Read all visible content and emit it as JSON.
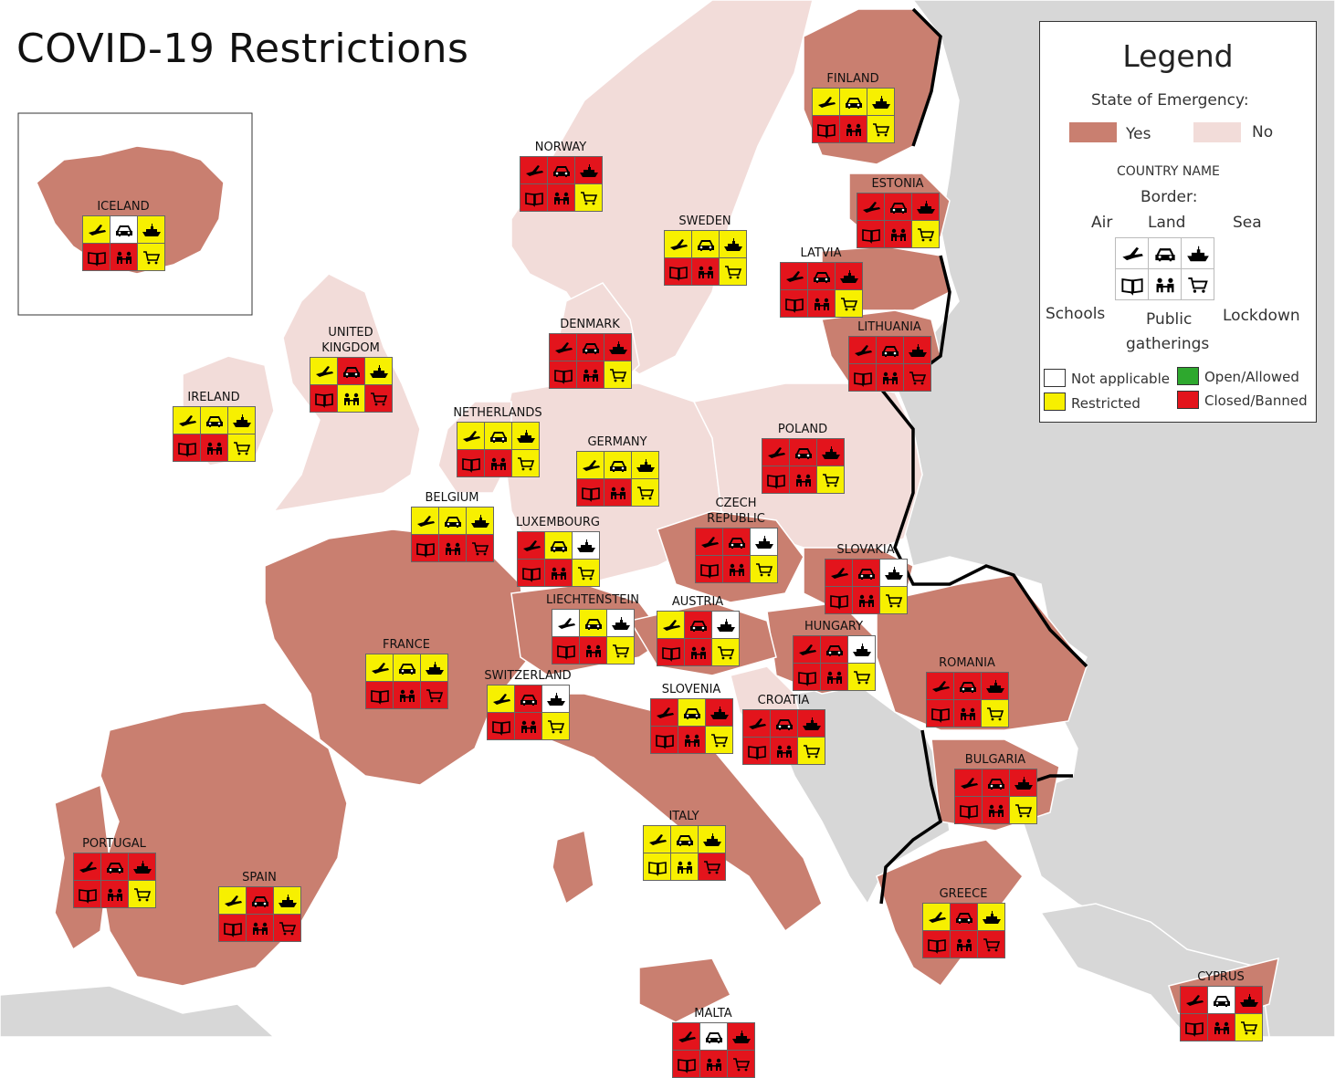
{
  "title": "COVID-19 Restrictions",
  "colors": {
    "sea": "#ffffff",
    "emergency_yes": "#c97f70",
    "emergency_no": "#f2dcd9",
    "other_land": "#d7d7d7",
    "restricted": "#f7f000",
    "closed": "#e3141c",
    "open": "#2ea82e",
    "na": "#ffffff"
  },
  "icons": [
    "plane-icon",
    "car-icon",
    "ship-icon",
    "book-icon",
    "people-icon",
    "cart-icon"
  ],
  "legend": {
    "title": "Legend",
    "state_label": "State of Emergency:",
    "yes": "Yes",
    "no": "No",
    "country_name": "COUNTRY NAME",
    "border": "Border:",
    "air": "Air",
    "land": "Land",
    "sea": "Sea",
    "schools": "Schools",
    "public": "Public",
    "gatherings": "gatherings",
    "lockdown": "Lockdown",
    "na": "Not applicable",
    "restricted": "Restricted",
    "open": "Open/Allowed",
    "closed": "Closed/Banned"
  },
  "countries": [
    {
      "name": "ICELAND",
      "s": [
        "y",
        "w",
        "y",
        "r",
        "r",
        "y"
      ]
    },
    {
      "name": "FINLAND",
      "s": [
        "y",
        "y",
        "y",
        "r",
        "r",
        "y"
      ]
    },
    {
      "name": "NORWAY",
      "s": [
        "r",
        "r",
        "r",
        "r",
        "r",
        "y"
      ]
    },
    {
      "name": "ESTONIA",
      "s": [
        "r",
        "r",
        "r",
        "r",
        "r",
        "y"
      ]
    },
    {
      "name": "SWEDEN",
      "s": [
        "y",
        "y",
        "y",
        "r",
        "r",
        "y"
      ]
    },
    {
      "name": "LATVIA",
      "s": [
        "r",
        "r",
        "r",
        "r",
        "r",
        "y"
      ]
    },
    {
      "name": "LITHUANIA",
      "s": [
        "r",
        "r",
        "r",
        "r",
        "r",
        "r"
      ]
    },
    {
      "name": "DENMARK",
      "s": [
        "r",
        "r",
        "r",
        "r",
        "r",
        "y"
      ]
    },
    {
      "name": "UNITED\nKINGDOM",
      "s": [
        "y",
        "r",
        "y",
        "r",
        "y",
        "r"
      ]
    },
    {
      "name": "IRELAND",
      "s": [
        "y",
        "y",
        "y",
        "r",
        "r",
        "y"
      ]
    },
    {
      "name": "NETHERLANDS",
      "s": [
        "y",
        "y",
        "y",
        "r",
        "r",
        "y"
      ]
    },
    {
      "name": "GERMANY",
      "s": [
        "y",
        "y",
        "y",
        "r",
        "r",
        "y"
      ]
    },
    {
      "name": "POLAND",
      "s": [
        "r",
        "r",
        "r",
        "r",
        "r",
        "y"
      ]
    },
    {
      "name": "BELGIUM",
      "s": [
        "y",
        "y",
        "y",
        "r",
        "r",
        "r"
      ]
    },
    {
      "name": "LUXEMBOURG",
      "s": [
        "r",
        "y",
        "w",
        "r",
        "r",
        "y"
      ]
    },
    {
      "name": "CZECH\nREPUBLIC",
      "s": [
        "r",
        "r",
        "w",
        "r",
        "r",
        "y"
      ]
    },
    {
      "name": "SLOVAKIA",
      "s": [
        "r",
        "r",
        "w",
        "r",
        "r",
        "y"
      ]
    },
    {
      "name": "LIECHTENSTEIN",
      "s": [
        "w",
        "y",
        "w",
        "r",
        "r",
        "y"
      ]
    },
    {
      "name": "AUSTRIA",
      "s": [
        "y",
        "r",
        "w",
        "r",
        "r",
        "y"
      ]
    },
    {
      "name": "HUNGARY",
      "s": [
        "r",
        "r",
        "w",
        "r",
        "r",
        "y"
      ]
    },
    {
      "name": "FRANCE",
      "s": [
        "y",
        "y",
        "y",
        "r",
        "r",
        "r"
      ]
    },
    {
      "name": "SWITZERLAND",
      "s": [
        "y",
        "r",
        "w",
        "r",
        "r",
        "y"
      ]
    },
    {
      "name": "ROMANIA",
      "s": [
        "r",
        "r",
        "r",
        "r",
        "r",
        "y"
      ]
    },
    {
      "name": "SLOVENIA",
      "s": [
        "r",
        "y",
        "r",
        "r",
        "r",
        "y"
      ]
    },
    {
      "name": "CROATIA",
      "s": [
        "r",
        "r",
        "r",
        "r",
        "r",
        "y"
      ]
    },
    {
      "name": "BULGARIA",
      "s": [
        "r",
        "r",
        "r",
        "r",
        "r",
        "y"
      ]
    },
    {
      "name": "ITALY",
      "s": [
        "y",
        "y",
        "y",
        "y",
        "y",
        "r"
      ]
    },
    {
      "name": "PORTUGAL",
      "s": [
        "r",
        "r",
        "r",
        "r",
        "r",
        "y"
      ]
    },
    {
      "name": "SPAIN",
      "s": [
        "y",
        "r",
        "y",
        "r",
        "r",
        "r"
      ]
    },
    {
      "name": "GREECE",
      "s": [
        "y",
        "r",
        "y",
        "r",
        "r",
        "r"
      ]
    },
    {
      "name": "CYPRUS",
      "s": [
        "r",
        "w",
        "r",
        "r",
        "r",
        "y"
      ]
    },
    {
      "name": "MALTA",
      "s": [
        "r",
        "w",
        "r",
        "r",
        "r",
        "r"
      ]
    }
  ]
}
